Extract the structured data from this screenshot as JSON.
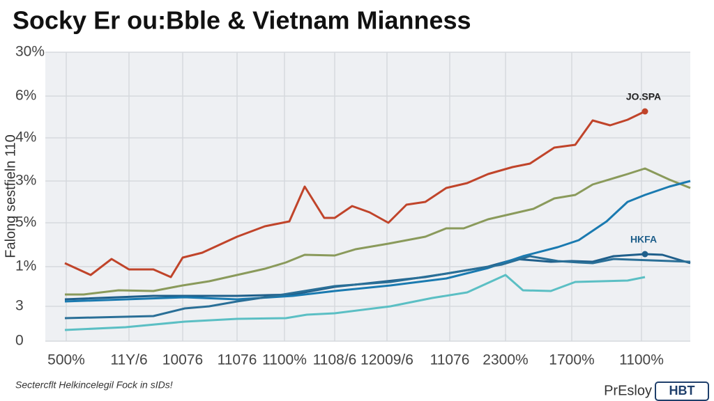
{
  "chart_data": {
    "type": "line",
    "title": "Socky Er ou:Bble & Vietnam Mianness",
    "ylabel": "Falong sestfieln 110",
    "footnote": "Sectercflt Helkincelegil Fock in sIDs!",
    "brand": "PrEsloy",
    "brand_logo": "HBT",
    "xlim": [
      0,
      925
    ],
    "xticks": [
      {
        "value": 30,
        "label": "500%"
      },
      {
        "value": 120,
        "label": "11Y/6"
      },
      {
        "value": 197,
        "label": "10076"
      },
      {
        "value": 275,
        "label": "11076"
      },
      {
        "value": 343,
        "label": "1100%"
      },
      {
        "value": 415,
        "label": "1108/6"
      },
      {
        "value": 490,
        "label": "12009/6"
      },
      {
        "value": 580,
        "label": "11076"
      },
      {
        "value": 660,
        "label": "2300%"
      },
      {
        "value": 755,
        "label": "1700%"
      },
      {
        "value": 855,
        "label": "1100%"
      }
    ],
    "ylim": [
      0,
      415
    ],
    "yticks": [
      0,
      {
        "value": 50,
        "label": "3"
      },
      {
        "value": 107,
        "label": "1%"
      },
      {
        "value": 170,
        "label": "5%"
      },
      {
        "value": 230,
        "label": "3%"
      },
      {
        "value": 292,
        "label": "4%"
      },
      {
        "value": 352,
        "label": "6%"
      },
      {
        "value": 415,
        "label": "30%"
      }
    ],
    "grid": true,
    "series": [
      {
        "name": "JO.SPA",
        "color": "#c0442a",
        "x": [
          28,
          65,
          95,
          120,
          155,
          180,
          197,
          225,
          275,
          315,
          350,
          372,
          400,
          415,
          440,
          465,
          492,
          518,
          545,
          575,
          605,
          635,
          670,
          695,
          730,
          760,
          785,
          810,
          835,
          860
        ],
        "values": [
          112,
          95,
          118,
          103,
          103,
          92,
          120,
          127,
          150,
          165,
          172,
          222,
          177,
          177,
          194,
          185,
          170,
          196,
          200,
          220,
          227,
          240,
          250,
          255,
          278,
          282,
          317,
          310,
          318,
          330
        ]
      },
      {
        "color": "#8a9a5b",
        "x": [
          28,
          55,
          105,
          155,
          197,
          235,
          275,
          315,
          345,
          372,
          415,
          445,
          492,
          545,
          575,
          600,
          635,
          700,
          730,
          760,
          785,
          835,
          860,
          895,
          925
        ],
        "values": [
          67,
          67,
          73,
          72,
          80,
          86,
          95,
          104,
          113,
          124,
          123,
          132,
          140,
          150,
          162,
          162,
          175,
          190,
          205,
          210,
          225,
          240,
          248,
          232,
          220
        ]
      },
      {
        "name": "HKFA",
        "color": "#1f5f8b",
        "x": [
          28,
          155,
          275,
          355,
          415,
          545,
          575,
          635,
          675,
          725,
          755,
          785,
          815,
          860,
          885,
          925
        ],
        "values": [
          60,
          65,
          65,
          67,
          78,
          92,
          97,
          107,
          118,
          114,
          115,
          114,
          122,
          125,
          124,
          112
        ]
      },
      {
        "color": "#1a7ab0",
        "x": [
          28,
          200,
          275,
          355,
          415,
          495,
          575,
          635,
          685,
          735,
          765,
          805,
          835,
          860,
          895,
          925
        ],
        "values": [
          57,
          63,
          60,
          65,
          72,
          80,
          90,
          105,
          122,
          135,
          145,
          172,
          200,
          210,
          222,
          230
        ]
      },
      {
        "color": "#2a6f97",
        "x": [
          28,
          155,
          200,
          235,
          275,
          335,
          415,
          495,
          575,
          655,
          695,
          735,
          765,
          785,
          815,
          925
        ],
        "values": [
          33,
          36,
          47,
          50,
          57,
          66,
          79,
          85,
          97,
          110,
          122,
          115,
          113,
          112,
          118,
          114
        ]
      },
      {
        "color": "#5bbfc4",
        "x": [
          28,
          115,
          200,
          275,
          345,
          375,
          415,
          495,
          555,
          605,
          660,
          685,
          725,
          760,
          835,
          860
        ],
        "values": [
          16,
          20,
          28,
          32,
          33,
          38,
          40,
          50,
          62,
          70,
          95,
          73,
          72,
          85,
          87,
          92
        ]
      }
    ]
  }
}
